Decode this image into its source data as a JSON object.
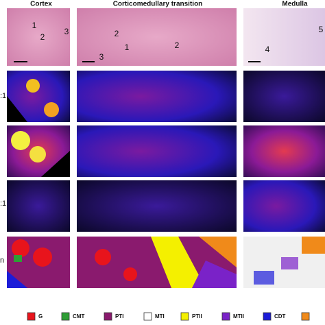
{
  "headers": [
    "Cortex",
    "Corticomedullary transition",
    "Medulla"
  ],
  "row_labels": [
    ":1",
    ":1",
    "n"
  ],
  "annotations": [
    "1",
    "2",
    "3",
    "2",
    "1",
    "3",
    "2",
    "4",
    "5"
  ],
  "legend": [
    {
      "label": "G",
      "color": "#e8141c"
    },
    {
      "label": "CMT",
      "color": "#2e9e35"
    },
    {
      "label": "PTI",
      "color": "#8a1a6e"
    },
    {
      "label": "MTI",
      "color": "#ffffff"
    },
    {
      "label": "PTII",
      "color": "#f4f000"
    },
    {
      "label": "MTII",
      "color": "#7a22c8"
    },
    {
      "label": "CDT",
      "color": "#1c1cd8"
    },
    {
      "label": "",
      "color": "#f08a1a"
    }
  ]
}
